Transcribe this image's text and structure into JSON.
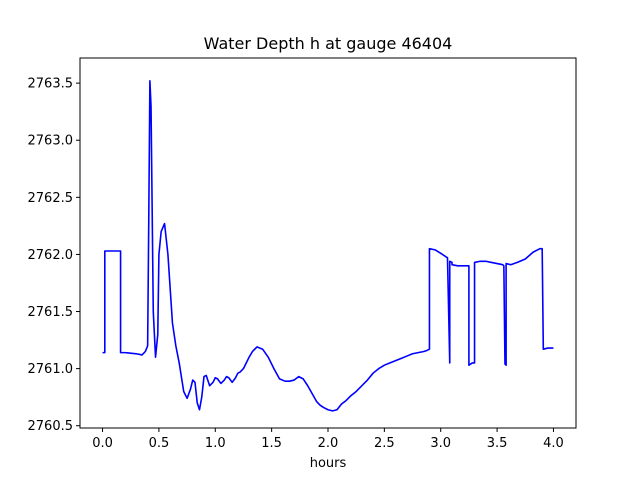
{
  "chart_data": {
    "type": "line",
    "title": "Water Depth h at gauge 46404",
    "xlabel": "hours",
    "ylabel": "",
    "xlim": [
      -0.2,
      4.2
    ],
    "ylim": [
      2760.48,
      2763.72
    ],
    "xticks": [
      0.0,
      0.5,
      1.0,
      1.5,
      2.0,
      2.5,
      3.0,
      3.5,
      4.0
    ],
    "xtick_labels": [
      "0.0",
      "0.5",
      "1.0",
      "1.5",
      "2.0",
      "2.5",
      "3.0",
      "3.5",
      "4.0"
    ],
    "yticks": [
      2760.5,
      2761.0,
      2761.5,
      2762.0,
      2762.5,
      2763.0,
      2763.5
    ],
    "ytick_labels": [
      "2760.5",
      "2761.0",
      "2761.5",
      "2762.0",
      "2762.5",
      "2763.0",
      "2763.5"
    ],
    "grid": false,
    "series": [
      {
        "color": "#0000ff",
        "x": [
          0.0,
          0.01,
          0.02,
          0.02,
          0.05,
          0.1,
          0.16,
          0.16,
          0.2,
          0.3,
          0.35,
          0.38,
          0.4,
          0.41,
          0.42,
          0.43,
          0.44,
          0.45,
          0.47,
          0.49,
          0.5,
          0.52,
          0.55,
          0.58,
          0.6,
          0.62,
          0.65,
          0.68,
          0.72,
          0.75,
          0.78,
          0.8,
          0.82,
          0.84,
          0.86,
          0.88,
          0.9,
          0.92,
          0.95,
          0.98,
          1.0,
          1.02,
          1.05,
          1.08,
          1.1,
          1.12,
          1.15,
          1.18,
          1.2,
          1.22,
          1.25,
          1.28,
          1.3,
          1.33,
          1.37,
          1.42,
          1.47,
          1.52,
          1.57,
          1.62,
          1.66,
          1.7,
          1.74,
          1.78,
          1.82,
          1.86,
          1.9,
          1.93,
          1.96,
          2.0,
          2.04,
          2.08,
          2.12,
          2.16,
          2.18,
          2.2,
          2.25,
          2.3,
          2.35,
          2.4,
          2.45,
          2.5,
          2.55,
          2.6,
          2.65,
          2.7,
          2.75,
          2.8,
          2.85,
          2.88,
          2.9,
          2.9,
          2.95,
          3.0,
          3.06,
          3.08,
          3.08,
          3.1,
          3.1,
          3.15,
          3.2,
          3.25,
          3.25,
          3.28,
          3.3,
          3.3,
          3.35,
          3.4,
          3.45,
          3.5,
          3.55,
          3.56,
          3.57,
          3.58,
          3.58,
          3.62,
          3.68,
          3.75,
          3.82,
          3.88,
          3.9,
          3.91,
          3.95,
          4.0
        ],
        "y": [
          2761.14,
          2761.14,
          2761.14,
          2762.03,
          2762.03,
          2762.03,
          2762.03,
          2761.14,
          2761.14,
          2761.13,
          2761.12,
          2761.15,
          2761.2,
          2762.3,
          2763.52,
          2763.3,
          2762.4,
          2761.5,
          2761.1,
          2761.3,
          2762.0,
          2762.2,
          2762.27,
          2762.0,
          2761.7,
          2761.4,
          2761.2,
          2761.05,
          2760.8,
          2760.74,
          2760.82,
          2760.9,
          2760.88,
          2760.7,
          2760.64,
          2760.75,
          2760.93,
          2760.94,
          2760.85,
          2760.88,
          2760.92,
          2760.91,
          2760.87,
          2760.9,
          2760.93,
          2760.92,
          2760.88,
          2760.92,
          2760.96,
          2760.97,
          2761.0,
          2761.06,
          2761.1,
          2761.15,
          2761.19,
          2761.17,
          2761.1,
          2761.0,
          2760.91,
          2760.89,
          2760.89,
          2760.9,
          2760.93,
          2760.91,
          2760.85,
          2760.78,
          2760.71,
          2760.68,
          2760.66,
          2760.64,
          2760.63,
          2760.64,
          2760.69,
          2760.72,
          2760.74,
          2760.76,
          2760.8,
          2760.85,
          2760.9,
          2760.96,
          2761.0,
          2761.03,
          2761.05,
          2761.07,
          2761.09,
          2761.11,
          2761.13,
          2761.14,
          2761.15,
          2761.16,
          2761.17,
          2762.05,
          2762.04,
          2762.01,
          2761.97,
          2761.05,
          2761.94,
          2761.93,
          2761.91,
          2761.9,
          2761.9,
          2761.9,
          2761.03,
          2761.05,
          2761.05,
          2761.93,
          2761.94,
          2761.94,
          2761.93,
          2761.92,
          2761.91,
          2761.9,
          2761.04,
          2761.03,
          2761.92,
          2761.91,
          2761.93,
          2761.96,
          2762.02,
          2762.05,
          2762.05,
          2761.17,
          2761.18,
          2761.18
        ]
      }
    ]
  }
}
